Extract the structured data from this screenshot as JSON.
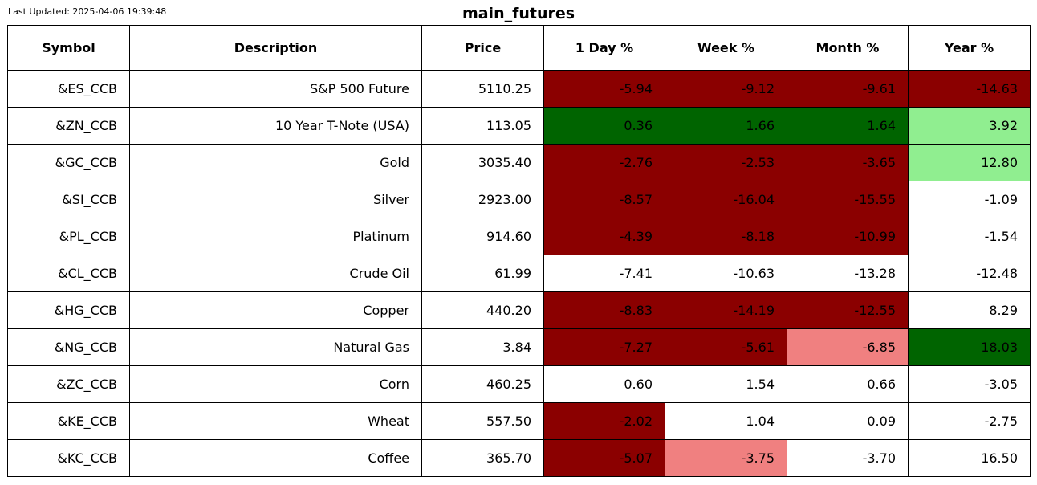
{
  "last_updated": "Last Updated: 2025-04-06 19:39:48",
  "title": "main_futures",
  "colors": {
    "strong_negative": "#8b0000",
    "mild_negative": "#f08080",
    "strong_positive": "#006400",
    "mild_positive": "#90ee90",
    "neutral": "#ffffff"
  },
  "chart_data": {
    "type": "table",
    "title": "main_futures",
    "columns": [
      "Symbol",
      "Description",
      "Price",
      "1 Day %",
      "Week %",
      "Month %",
      "Year %"
    ],
    "rows": [
      {
        "symbol": "&ES_CCB",
        "description": "S&P 500 Future",
        "price": "5110.25",
        "day": "-5.94",
        "week": "-9.12",
        "month": "-9.61",
        "year": "-14.63",
        "colors": {
          "day": "#8b0000",
          "week": "#8b0000",
          "month": "#8b0000",
          "year": "#8b0000"
        }
      },
      {
        "symbol": "&ZN_CCB",
        "description": "10 Year T-Note (USA)",
        "price": "113.05",
        "day": "0.36",
        "week": "1.66",
        "month": "1.64",
        "year": "3.92",
        "colors": {
          "day": "#006400",
          "week": "#006400",
          "month": "#006400",
          "year": "#90ee90"
        }
      },
      {
        "symbol": "&GC_CCB",
        "description": "Gold",
        "price": "3035.40",
        "day": "-2.76",
        "week": "-2.53",
        "month": "-3.65",
        "year": "12.80",
        "colors": {
          "day": "#8b0000",
          "week": "#8b0000",
          "month": "#8b0000",
          "year": "#90ee90"
        }
      },
      {
        "symbol": "&SI_CCB",
        "description": "Silver",
        "price": "2923.00",
        "day": "-8.57",
        "week": "-16.04",
        "month": "-15.55",
        "year": "-1.09",
        "colors": {
          "day": "#8b0000",
          "week": "#8b0000",
          "month": "#8b0000",
          "year": "#ffffff"
        }
      },
      {
        "symbol": "&PL_CCB",
        "description": "Platinum",
        "price": "914.60",
        "day": "-4.39",
        "week": "-8.18",
        "month": "-10.99",
        "year": "-1.54",
        "colors": {
          "day": "#8b0000",
          "week": "#8b0000",
          "month": "#8b0000",
          "year": "#ffffff"
        }
      },
      {
        "symbol": "&CL_CCB",
        "description": "Crude Oil",
        "price": "61.99",
        "day": "-7.41",
        "week": "-10.63",
        "month": "-13.28",
        "year": "-12.48",
        "colors": {
          "day": "#ffffff",
          "week": "#ffffff",
          "month": "#ffffff",
          "year": "#ffffff"
        }
      },
      {
        "symbol": "&HG_CCB",
        "description": "Copper",
        "price": "440.20",
        "day": "-8.83",
        "week": "-14.19",
        "month": "-12.55",
        "year": "8.29",
        "colors": {
          "day": "#8b0000",
          "week": "#8b0000",
          "month": "#8b0000",
          "year": "#ffffff"
        }
      },
      {
        "symbol": "&NG_CCB",
        "description": "Natural Gas",
        "price": "3.84",
        "day": "-7.27",
        "week": "-5.61",
        "month": "-6.85",
        "year": "18.03",
        "colors": {
          "day": "#8b0000",
          "week": "#8b0000",
          "month": "#f08080",
          "year": "#006400"
        }
      },
      {
        "symbol": "&ZC_CCB",
        "description": "Corn",
        "price": "460.25",
        "day": "0.60",
        "week": "1.54",
        "month": "0.66",
        "year": "-3.05",
        "colors": {
          "day": "#ffffff",
          "week": "#ffffff",
          "month": "#ffffff",
          "year": "#ffffff"
        }
      },
      {
        "symbol": "&KE_CCB",
        "description": "Wheat",
        "price": "557.50",
        "day": "-2.02",
        "week": "1.04",
        "month": "0.09",
        "year": "-2.75",
        "colors": {
          "day": "#8b0000",
          "week": "#ffffff",
          "month": "#ffffff",
          "year": "#ffffff"
        }
      },
      {
        "symbol": "&KC_CCB",
        "description": "Coffee",
        "price": "365.70",
        "day": "-5.07",
        "week": "-3.75",
        "month": "-3.70",
        "year": "16.50",
        "colors": {
          "day": "#8b0000",
          "week": "#f08080",
          "month": "#ffffff",
          "year": "#ffffff"
        }
      }
    ]
  }
}
